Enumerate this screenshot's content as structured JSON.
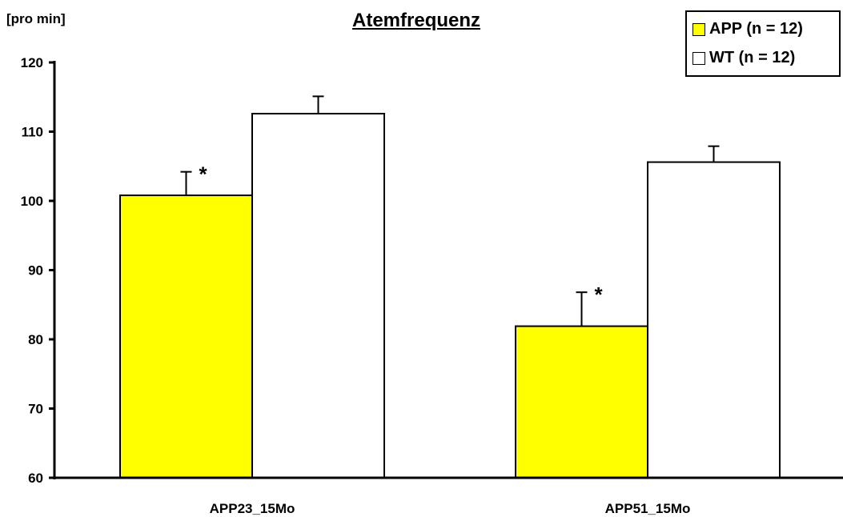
{
  "chart_data": {
    "type": "bar",
    "title": "Atemfrequenz",
    "ylabel": "[pro min]",
    "xlabel": "",
    "categories": [
      "APP23_15Mo",
      "APP51_15Mo"
    ],
    "ylim": [
      60,
      120
    ],
    "yticks": [
      60,
      70,
      80,
      90,
      100,
      110,
      120
    ],
    "grid": false,
    "legend_position": "top-right",
    "series": [
      {
        "name": "APP (n = 12)",
        "values": [
          100.8,
          81.9
        ],
        "errors": [
          3.4,
          4.9
        ],
        "color": "#ffff00",
        "annotations": [
          "*",
          "*"
        ]
      },
      {
        "name": "WT (n = 12)",
        "values": [
          112.6,
          105.6
        ],
        "errors": [
          2.5,
          2.3
        ],
        "color": "#ffffff",
        "annotations": [
          "",
          ""
        ]
      }
    ]
  }
}
